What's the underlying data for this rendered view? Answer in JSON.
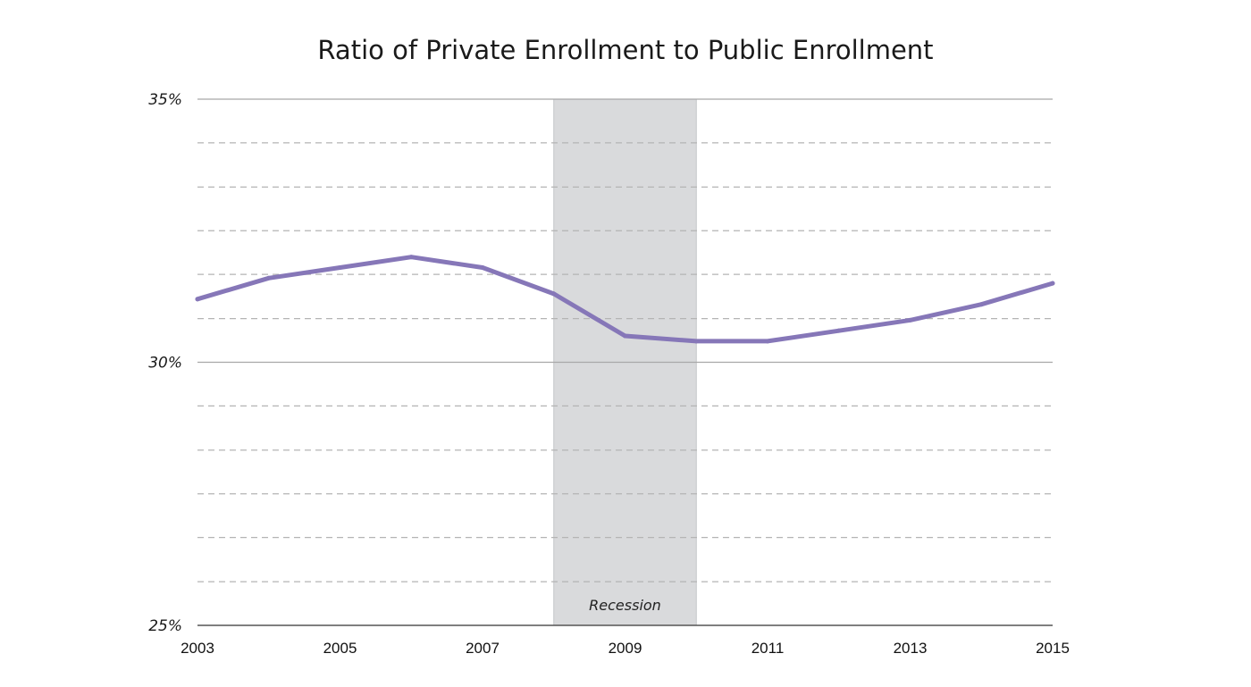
{
  "chart_data": {
    "type": "line",
    "title": "Ratio of Private Enrollment to Public Enrollment",
    "xlabel": "",
    "ylabel": "",
    "x": [
      2003,
      2004,
      2005,
      2006,
      2007,
      2008,
      2009,
      2010,
      2011,
      2012,
      2013,
      2014,
      2015
    ],
    "series": [
      {
        "values": [
          31.2,
          31.6,
          31.8,
          32.0,
          31.8,
          31.3,
          30.5,
          30.4,
          30.4,
          30.6,
          30.8,
          31.1,
          31.5
        ]
      }
    ],
    "xlim": [
      2003,
      2015
    ],
    "ylim": [
      25,
      35
    ],
    "x_ticks": [
      "2003",
      "2005",
      "2007",
      "2009",
      "2011",
      "2013",
      "2015"
    ],
    "x_tick_values": [
      2003,
      2005,
      2007,
      2009,
      2011,
      2013,
      2015
    ],
    "y_ticks": [
      "35%",
      "30%",
      "25%"
    ],
    "y_tick_values": [
      35,
      30,
      25
    ],
    "minor_gridlines_y": [
      34.17,
      33.33,
      32.5,
      31.67,
      30.83,
      29.17,
      28.33,
      27.5,
      26.67,
      25.83
    ],
    "grid": true,
    "legend": "none",
    "shaded_band": {
      "label": "Recession",
      "x_start": 2008,
      "x_end": 2010,
      "color": "#d9dadc"
    },
    "colors": {
      "line": "#8677b8",
      "major_grid": "#a8a8a8",
      "minor_grid": "#b4b4b4",
      "axis": "#555555"
    }
  }
}
